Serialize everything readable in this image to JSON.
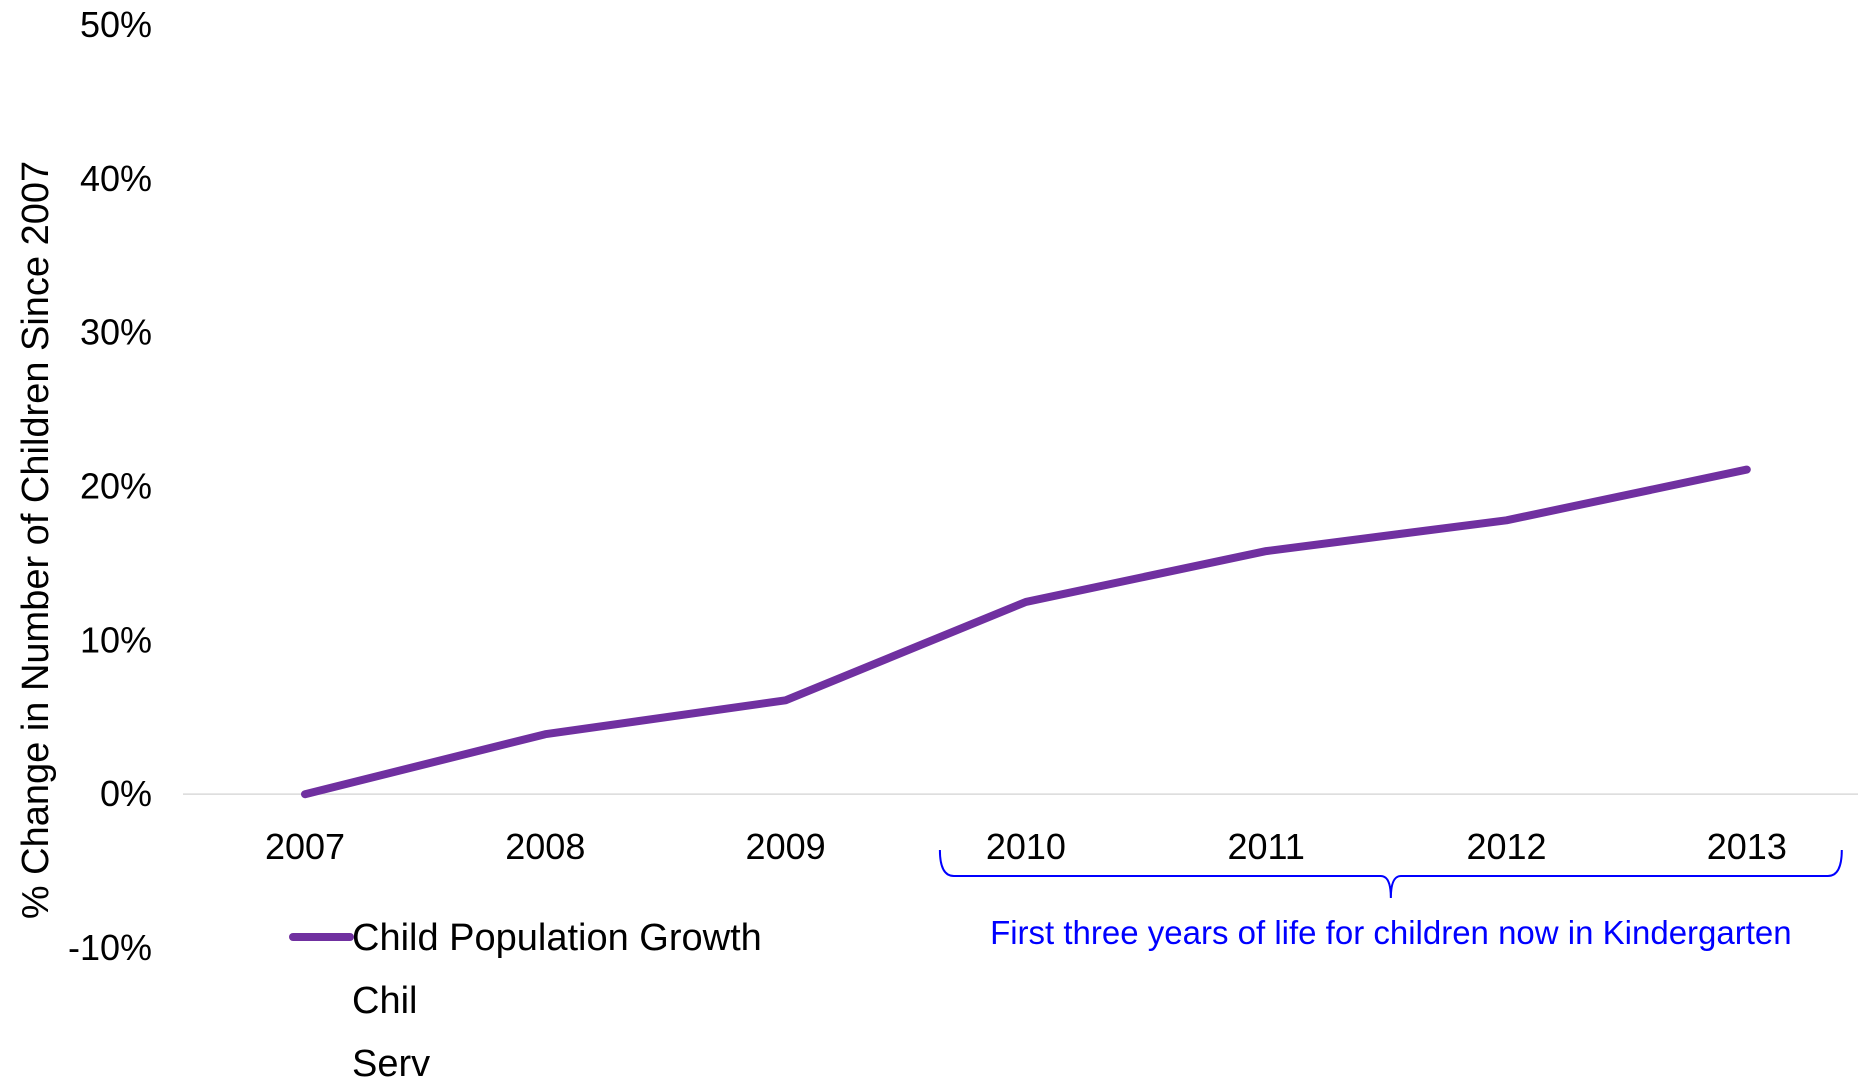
{
  "chart_data": {
    "type": "line",
    "categories": [
      "2007",
      "2008",
      "2009",
      "2010",
      "2011",
      "2012",
      "2013"
    ],
    "series": [
      {
        "name": "Child Population Growth",
        "values": [
          0.0,
          3.9,
          6.1,
          12.5,
          15.8,
          17.8,
          21.1
        ],
        "color": "#7030a0"
      }
    ],
    "hidden_legend_entries": [
      "Chil",
      "Serv"
    ],
    "xlabel": "",
    "ylabel": "% Change in Number of Children Since 2007",
    "ylim": [
      -10,
      50
    ],
    "yticks": [
      "-10%",
      "0%",
      "10%",
      "20%",
      "30%",
      "40%",
      "50%"
    ],
    "ytick_values": [
      -10,
      0,
      10,
      20,
      30,
      40,
      50
    ],
    "grid": false,
    "zero_line_color": "#d9d9d9",
    "legend_position": "bottom-left",
    "annotation": {
      "text": "First three years of life for children now in Kindergarten",
      "span": [
        "2010",
        "2013"
      ],
      "color": "#0000ff"
    }
  }
}
